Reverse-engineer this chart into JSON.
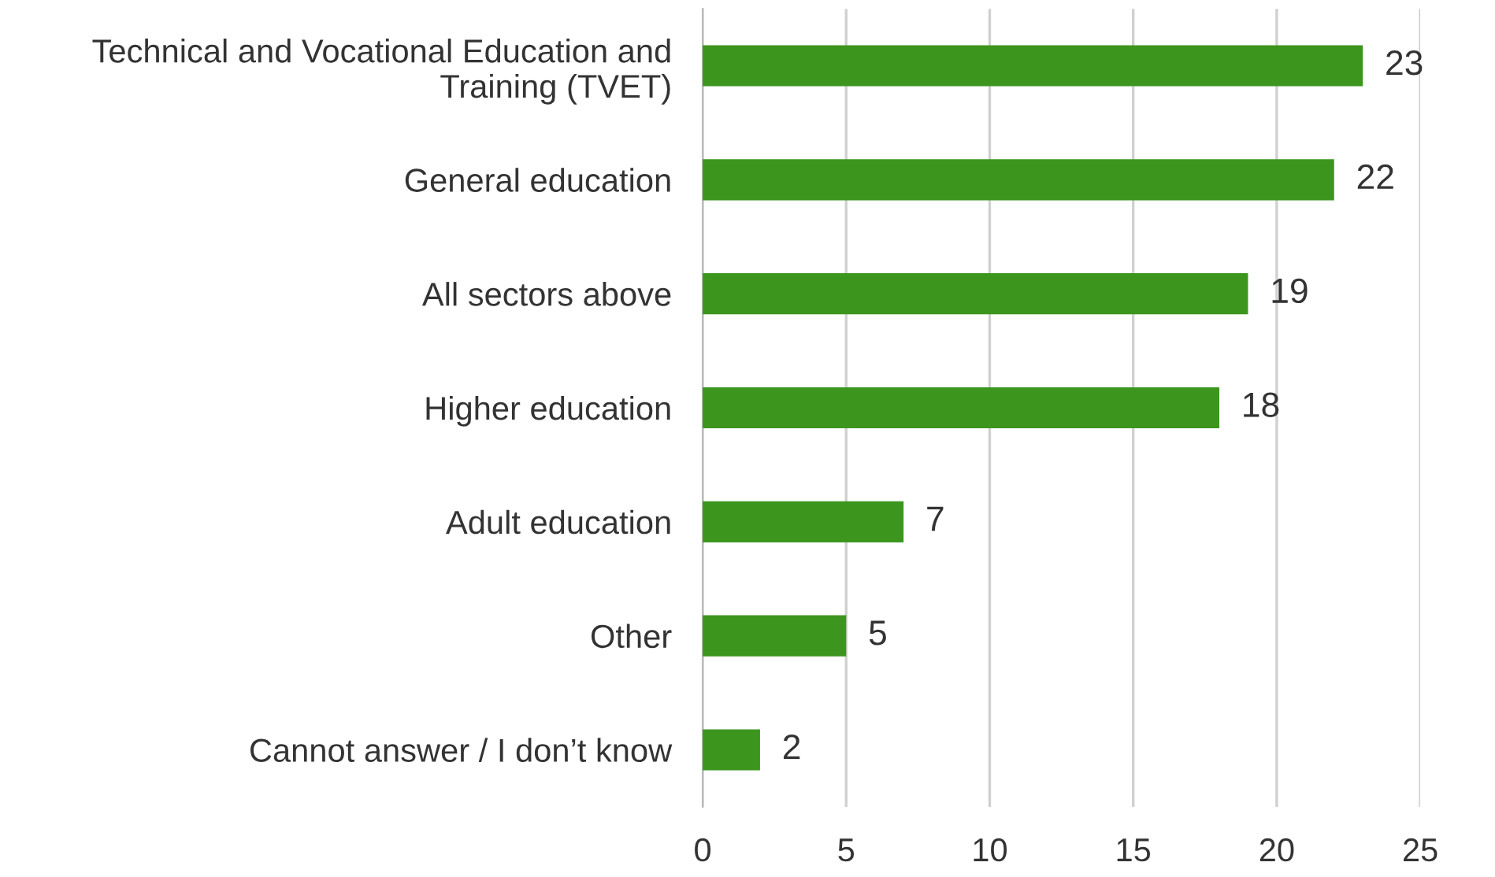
{
  "chart_data": {
    "type": "bar",
    "orientation": "horizontal",
    "categories": [
      "Technical and Vocational Education and\nTraining (TVET)",
      "General education",
      "All sectors above",
      "Higher education",
      "Adult education",
      "Other",
      "Cannot answer / I don’t know"
    ],
    "values": [
      23,
      22,
      19,
      18,
      7,
      5,
      2
    ],
    "color": "#3c961e",
    "xlim": [
      0,
      25
    ],
    "xticks": [
      0,
      5,
      10,
      15,
      20,
      25
    ],
    "grid": "x",
    "data_labels": true,
    "legend": false
  }
}
